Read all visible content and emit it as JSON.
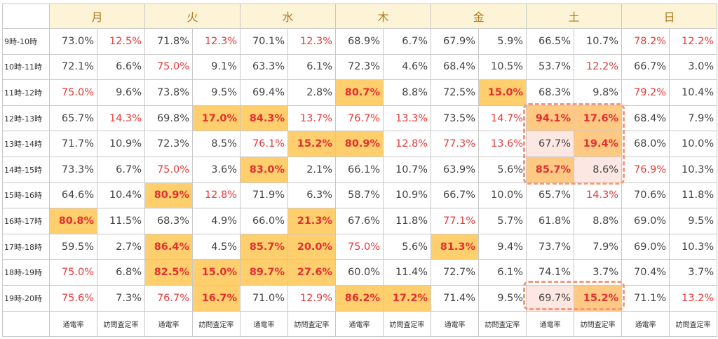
{
  "days": [
    "月",
    "火",
    "水",
    "木",
    "金",
    "土",
    "日"
  ],
  "metric_labels": [
    "通電率",
    "訪問査定率"
  ],
  "colors": {
    "header_bg": "#fdf3d6",
    "header_text": "#b07a1b",
    "highlight_bg": "#ffcf6e",
    "highlight_text": "#e23030",
    "red_text": "#e43b3b",
    "pink_bg": "#fde7e2",
    "dash_border": "#f29b7c"
  },
  "rows": [
    {
      "time": "9時-10時",
      "values": [
        {
          "v": "73.0%"
        },
        {
          "v": "12.5%",
          "s": "red"
        },
        {
          "v": "71.8%"
        },
        {
          "v": "12.3%",
          "s": "red"
        },
        {
          "v": "70.1%"
        },
        {
          "v": "12.3%",
          "s": "red"
        },
        {
          "v": "68.9%"
        },
        {
          "v": "6.7%"
        },
        {
          "v": "67.9%"
        },
        {
          "v": "5.9%"
        },
        {
          "v": "66.5%"
        },
        {
          "v": "10.7%"
        },
        {
          "v": "78.2%",
          "s": "red"
        },
        {
          "v": "12.2%",
          "s": "red"
        }
      ]
    },
    {
      "time": "10時-11時",
      "values": [
        {
          "v": "72.1%"
        },
        {
          "v": "6.6%"
        },
        {
          "v": "75.0%",
          "s": "red"
        },
        {
          "v": "9.1%"
        },
        {
          "v": "63.3%"
        },
        {
          "v": "6.1%"
        },
        {
          "v": "72.3%"
        },
        {
          "v": "4.6%"
        },
        {
          "v": "68.4%"
        },
        {
          "v": "10.5%"
        },
        {
          "v": "53.7%"
        },
        {
          "v": "12.2%",
          "s": "red"
        },
        {
          "v": "66.7%"
        },
        {
          "v": "3.0%"
        }
      ]
    },
    {
      "time": "11時-12時",
      "values": [
        {
          "v": "75.0%",
          "s": "red"
        },
        {
          "v": "9.6%"
        },
        {
          "v": "73.8%"
        },
        {
          "v": "9.5%"
        },
        {
          "v": "69.4%"
        },
        {
          "v": "2.8%"
        },
        {
          "v": "80.7%",
          "s": "hl"
        },
        {
          "v": "8.8%"
        },
        {
          "v": "72.5%"
        },
        {
          "v": "15.0%",
          "s": "hl"
        },
        {
          "v": "68.3%"
        },
        {
          "v": "9.8%"
        },
        {
          "v": "79.2%",
          "s": "red"
        },
        {
          "v": "10.4%"
        }
      ]
    },
    {
      "time": "12時-13時",
      "values": [
        {
          "v": "65.7%"
        },
        {
          "v": "14.3%",
          "s": "red"
        },
        {
          "v": "69.8%"
        },
        {
          "v": "17.0%",
          "s": "hl"
        },
        {
          "v": "84.3%",
          "s": "hl"
        },
        {
          "v": "13.7%",
          "s": "red"
        },
        {
          "v": "76.7%",
          "s": "red"
        },
        {
          "v": "13.3%",
          "s": "red"
        },
        {
          "v": "73.5%"
        },
        {
          "v": "14.7%",
          "s": "red"
        },
        {
          "v": "94.1%",
          "s": "pkb"
        },
        {
          "v": "17.6%",
          "s": "pkb"
        },
        {
          "v": "68.4%"
        },
        {
          "v": "7.9%"
        }
      ]
    },
    {
      "time": "13時-14時",
      "values": [
        {
          "v": "71.7%"
        },
        {
          "v": "10.9%"
        },
        {
          "v": "72.3%"
        },
        {
          "v": "8.5%"
        },
        {
          "v": "76.1%",
          "s": "red"
        },
        {
          "v": "15.2%",
          "s": "hl"
        },
        {
          "v": "80.9%",
          "s": "hl"
        },
        {
          "v": "12.8%",
          "s": "red"
        },
        {
          "v": "77.3%",
          "s": "red"
        },
        {
          "v": "13.6%",
          "s": "red"
        },
        {
          "v": "67.7%",
          "s": "pk"
        },
        {
          "v": "19.4%",
          "s": "pkb"
        },
        {
          "v": "68.0%"
        },
        {
          "v": "10.0%"
        }
      ]
    },
    {
      "time": "14時-15時",
      "values": [
        {
          "v": "73.3%"
        },
        {
          "v": "6.7%"
        },
        {
          "v": "75.0%",
          "s": "red"
        },
        {
          "v": "3.6%"
        },
        {
          "v": "83.0%",
          "s": "hl"
        },
        {
          "v": "2.1%"
        },
        {
          "v": "66.1%"
        },
        {
          "v": "10.7%"
        },
        {
          "v": "63.9%"
        },
        {
          "v": "5.6%"
        },
        {
          "v": "85.7%",
          "s": "pkb"
        },
        {
          "v": "8.6%",
          "s": "pk"
        },
        {
          "v": "76.9%",
          "s": "red"
        },
        {
          "v": "10.3%"
        }
      ]
    },
    {
      "time": "15時-16時",
      "values": [
        {
          "v": "64.6%"
        },
        {
          "v": "10.4%"
        },
        {
          "v": "80.9%",
          "s": "hl"
        },
        {
          "v": "12.8%",
          "s": "red"
        },
        {
          "v": "71.9%"
        },
        {
          "v": "6.3%"
        },
        {
          "v": "58.7%"
        },
        {
          "v": "10.9%"
        },
        {
          "v": "66.7%"
        },
        {
          "v": "10.0%"
        },
        {
          "v": "65.7%"
        },
        {
          "v": "14.3%",
          "s": "red"
        },
        {
          "v": "70.6%"
        },
        {
          "v": "11.8%"
        }
      ]
    },
    {
      "time": "16時-17時",
      "values": [
        {
          "v": "80.8%",
          "s": "hl"
        },
        {
          "v": "11.5%"
        },
        {
          "v": "68.3%"
        },
        {
          "v": "4.9%"
        },
        {
          "v": "66.0%"
        },
        {
          "v": "21.3%",
          "s": "hl"
        },
        {
          "v": "67.6%"
        },
        {
          "v": "11.8%"
        },
        {
          "v": "77.1%",
          "s": "red"
        },
        {
          "v": "5.7%"
        },
        {
          "v": "61.8%"
        },
        {
          "v": "8.8%"
        },
        {
          "v": "69.0%"
        },
        {
          "v": "9.5%"
        }
      ]
    },
    {
      "time": "17時-18時",
      "values": [
        {
          "v": "59.5%"
        },
        {
          "v": "2.7%"
        },
        {
          "v": "86.4%",
          "s": "hl"
        },
        {
          "v": "4.5%"
        },
        {
          "v": "85.7%",
          "s": "hl"
        },
        {
          "v": "20.0%",
          "s": "hl"
        },
        {
          "v": "75.0%",
          "s": "red"
        },
        {
          "v": "5.6%"
        },
        {
          "v": "81.3%",
          "s": "hl"
        },
        {
          "v": "9.4%"
        },
        {
          "v": "73.7%"
        },
        {
          "v": "7.9%"
        },
        {
          "v": "69.0%"
        },
        {
          "v": "10.3%"
        }
      ]
    },
    {
      "time": "18時-19時",
      "values": [
        {
          "v": "75.0%",
          "s": "red"
        },
        {
          "v": "6.8%"
        },
        {
          "v": "82.5%",
          "s": "hl"
        },
        {
          "v": "15.0%",
          "s": "hl"
        },
        {
          "v": "89.7%",
          "s": "hl"
        },
        {
          "v": "27.6%",
          "s": "hl"
        },
        {
          "v": "60.0%"
        },
        {
          "v": "11.4%"
        },
        {
          "v": "72.7%"
        },
        {
          "v": "6.1%"
        },
        {
          "v": "74.1%"
        },
        {
          "v": "3.7%"
        },
        {
          "v": "70.4%"
        },
        {
          "v": "3.7%"
        }
      ]
    },
    {
      "time": "19時-20時",
      "values": [
        {
          "v": "75.6%",
          "s": "red"
        },
        {
          "v": "7.3%"
        },
        {
          "v": "76.7%",
          "s": "red"
        },
        {
          "v": "16.7%",
          "s": "hl"
        },
        {
          "v": "71.0%"
        },
        {
          "v": "12.9%",
          "s": "red"
        },
        {
          "v": "86.2%",
          "s": "hl"
        },
        {
          "v": "17.2%",
          "s": "hl"
        },
        {
          "v": "71.4%"
        },
        {
          "v": "9.5%"
        },
        {
          "v": "69.7%",
          "s": "pk"
        },
        {
          "v": "15.2%",
          "s": "pkb"
        },
        {
          "v": "71.1%"
        },
        {
          "v": "13.2%",
          "s": "red"
        }
      ]
    }
  ]
}
